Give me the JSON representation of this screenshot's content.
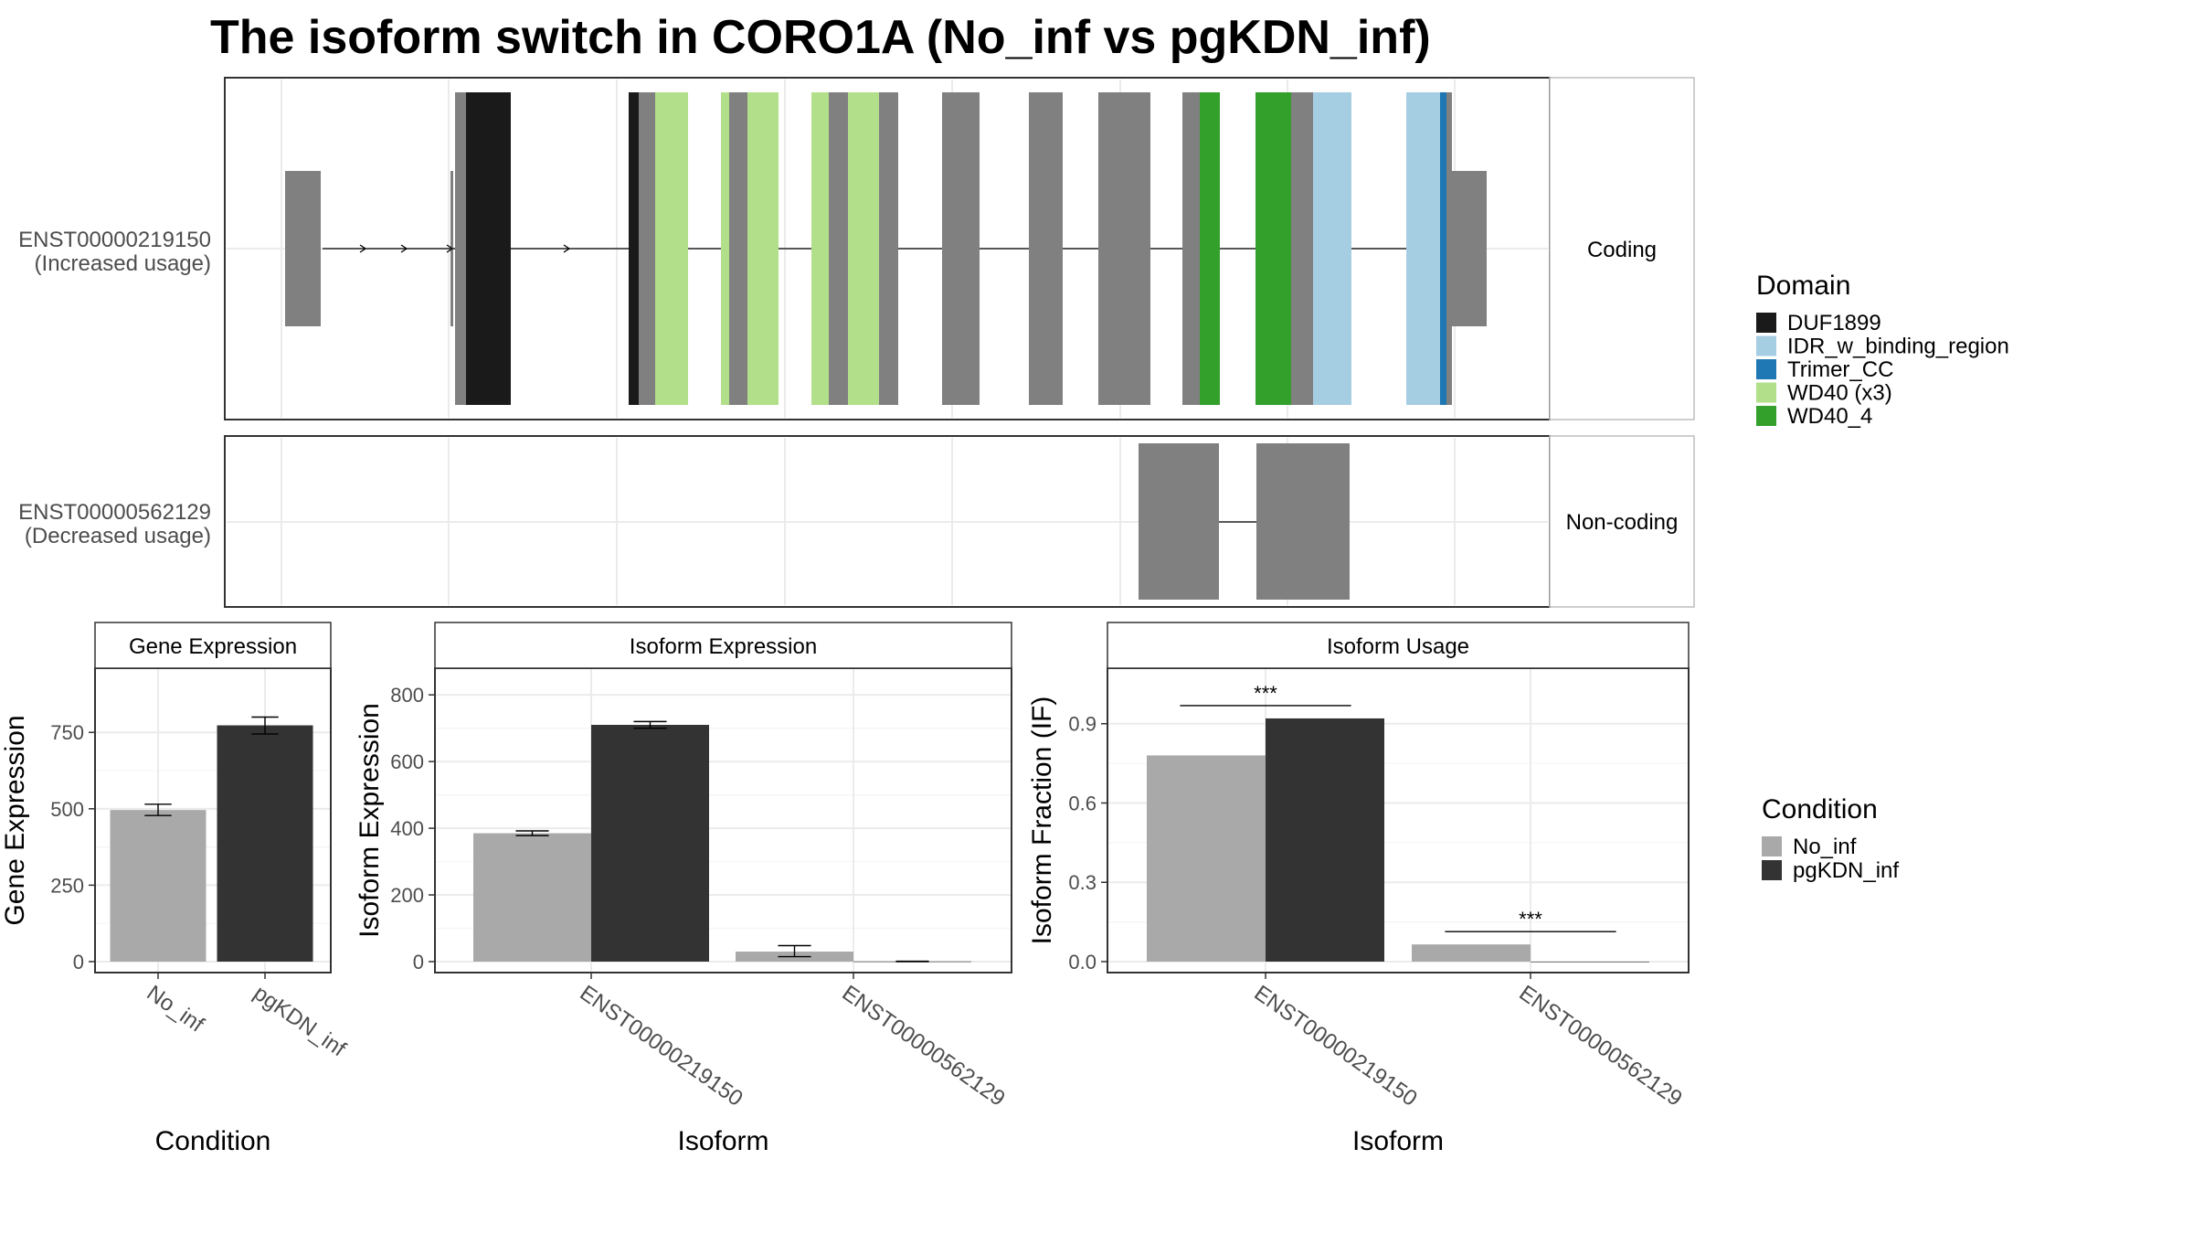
{
  "title": "The isoform switch in CORO1A (No_inf vs pgKDN_inf)",
  "colors": {
    "intron": "#808080",
    "no_inf": "#a9a9a9",
    "pgkdn_inf": "#333333",
    "panel_border": "#333333",
    "strip_border": "#bdbdbd",
    "grid": "#ebebeb"
  },
  "transcript_panels": [
    {
      "transcript": "ENST00000219150",
      "usage": "(Increased usage)",
      "strip": "Coding"
    },
    {
      "transcript": "ENST00000562129",
      "usage": "(Decreased usage)",
      "strip": "Non-coding"
    }
  ],
  "domain_legend": {
    "title": "Domain",
    "items": [
      {
        "name": "DUF1899",
        "color": "#1a1a1a"
      },
      {
        "name": "IDR_w_binding_region",
        "color": "#a6cee3"
      },
      {
        "name": "Trimer_CC",
        "color": "#1f78b4"
      },
      {
        "name": "WD40 (x3)",
        "color": "#b2df8a"
      },
      {
        "name": "WD40_4",
        "color": "#33a02c"
      }
    ]
  },
  "condition_legend": {
    "title": "Condition",
    "items": [
      {
        "name": "No_inf",
        "color": "#a9a9a9"
      },
      {
        "name": "pgKDN_inf",
        "color": "#333333"
      }
    ]
  },
  "chart_data": [
    {
      "type": "bar",
      "title": "Gene Expression",
      "xlabel": "Condition",
      "ylabel": "Gene Expression",
      "ylim": [
        0,
        960
      ],
      "yticks": [
        0,
        250,
        500,
        750
      ],
      "categories": [
        "No_inf",
        "pgKDN_inf"
      ],
      "values": [
        496,
        773
      ],
      "errors": [
        [
          478,
          515
        ],
        [
          745,
          800
        ]
      ]
    },
    {
      "type": "bar",
      "title": "Isoform Expression",
      "xlabel": "Isoform",
      "ylabel": "Isoform Expression",
      "ylim": [
        0,
        880
      ],
      "yticks": [
        0,
        200,
        400,
        600,
        800
      ],
      "categories": [
        "ENST00000219150",
        "ENST00000562129"
      ],
      "series": [
        {
          "name": "No_inf",
          "values": [
            385,
            30
          ],
          "errors": [
            [
              378,
              392
            ],
            [
              15,
              48
            ]
          ]
        },
        {
          "name": "pgKDN_inf",
          "values": [
            710,
            0.5
          ],
          "errors": [
            [
              700,
              720
            ],
            [
              0,
              1
            ]
          ]
        }
      ]
    },
    {
      "type": "bar",
      "title": "Isoform Usage",
      "xlabel": "Isoform",
      "ylabel": "Isoform Fraction (IF)",
      "ylim": [
        0,
        1.11
      ],
      "yticks": [
        0.0,
        0.3,
        0.6,
        0.9
      ],
      "categories": [
        "ENST00000219150",
        "ENST00000562129"
      ],
      "series": [
        {
          "name": "No_inf",
          "values": [
            0.78,
            0.065
          ]
        },
        {
          "name": "pgKDN_inf",
          "values": [
            0.92,
            0.0
          ]
        }
      ],
      "annotations": [
        "***",
        "***"
      ]
    }
  ]
}
